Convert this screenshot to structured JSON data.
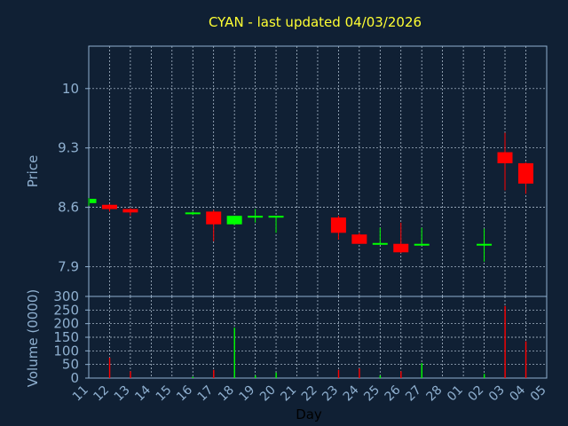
{
  "title": "CYAN - last updated 04/03/2026",
  "colors": {
    "background": "#102034",
    "plot_border": "#8fb0d0",
    "grid": "#c0d0e0",
    "up": "#00ff00",
    "down": "#ff0000",
    "title": "#ffff33",
    "tick_text": "#8fb0d0",
    "xlabel_text": "#000000"
  },
  "chart_data": [
    {
      "type": "candlestick",
      "ylabel": "Price",
      "ylim": [
        7.55,
        10.5
      ],
      "yticks": [
        7.9,
        8.6,
        9.3,
        10
      ],
      "ytick_labels": [
        "7.9",
        "8.6",
        "9.3",
        "10"
      ],
      "grid": true,
      "x": [
        "11",
        "12",
        "13",
        "14",
        "15",
        "16",
        "17",
        "18",
        "19",
        "20",
        "21",
        "22",
        "23",
        "24",
        "25",
        "26",
        "27",
        "28",
        "01",
        "02",
        "03",
        "04",
        "05"
      ],
      "candles": [
        {
          "x": "11",
          "open": 8.65,
          "high": 8.71,
          "low": 8.62,
          "close": 8.7
        },
        {
          "x": "12",
          "open": 8.63,
          "high": 8.64,
          "low": 8.55,
          "close": 8.58
        },
        {
          "x": "13",
          "open": 8.58,
          "high": 8.59,
          "low": 8.5,
          "close": 8.54
        },
        {
          "x": "16",
          "open": 8.53,
          "high": 8.55,
          "low": 8.51,
          "close": 8.54
        },
        {
          "x": "17",
          "open": 8.55,
          "high": 8.57,
          "low": 8.2,
          "close": 8.4
        },
        {
          "x": "18",
          "open": 8.4,
          "high": 8.5,
          "low": 8.39,
          "close": 8.5
        },
        {
          "x": "19",
          "open": 8.48,
          "high": 8.58,
          "low": 8.42,
          "close": 8.5
        },
        {
          "x": "20",
          "open": 8.49,
          "high": 8.5,
          "low": 8.3,
          "close": 8.5
        },
        {
          "x": "23",
          "open": 8.48,
          "high": 8.5,
          "low": 8.22,
          "close": 8.3
        },
        {
          "x": "24",
          "open": 8.28,
          "high": 8.3,
          "low": 8.17,
          "close": 8.17
        },
        {
          "x": "25",
          "open": 8.17,
          "high": 8.36,
          "low": 8.16,
          "close": 8.18
        },
        {
          "x": "26",
          "open": 8.17,
          "high": 8.42,
          "low": 8.06,
          "close": 8.07
        },
        {
          "x": "27",
          "open": 8.16,
          "high": 8.36,
          "low": 8.15,
          "close": 8.17
        },
        {
          "x": "02",
          "open": 8.16,
          "high": 8.35,
          "low": 7.96,
          "close": 8.17
        },
        {
          "x": "03",
          "open": 9.25,
          "high": 9.48,
          "low": 8.8,
          "close": 9.12
        },
        {
          "x": "04",
          "open": 9.12,
          "high": 9.13,
          "low": 8.76,
          "close": 8.88
        }
      ]
    },
    {
      "type": "bar",
      "ylabel": "Volume (0000)",
      "xlabel": "Day",
      "ylim": [
        0,
        300
      ],
      "yticks": [
        0,
        50,
        100,
        150,
        200,
        250,
        300
      ],
      "ytick_labels": [
        "0",
        "50",
        "100",
        "150",
        "200",
        "250",
        "300"
      ],
      "grid": true,
      "categories": [
        "11",
        "12",
        "13",
        "14",
        "15",
        "16",
        "17",
        "18",
        "19",
        "20",
        "21",
        "22",
        "23",
        "24",
        "25",
        "26",
        "27",
        "28",
        "01",
        "02",
        "03",
        "04",
        "05"
      ],
      "volumes": [
        {
          "x": "11",
          "value": 0,
          "dir": "up"
        },
        {
          "x": "12",
          "value": 75,
          "dir": "down"
        },
        {
          "x": "13",
          "value": 25,
          "dir": "down"
        },
        {
          "x": "16",
          "value": 5,
          "dir": "up"
        },
        {
          "x": "17",
          "value": 30,
          "dir": "down"
        },
        {
          "x": "18",
          "value": 185,
          "dir": "up"
        },
        {
          "x": "19",
          "value": 10,
          "dir": "up"
        },
        {
          "x": "20",
          "value": 20,
          "dir": "up"
        },
        {
          "x": "23",
          "value": 30,
          "dir": "down"
        },
        {
          "x": "24",
          "value": 35,
          "dir": "down"
        },
        {
          "x": "25",
          "value": 10,
          "dir": "up"
        },
        {
          "x": "26",
          "value": 25,
          "dir": "down"
        },
        {
          "x": "27",
          "value": 55,
          "dir": "up"
        },
        {
          "x": "02",
          "value": 15,
          "dir": "up"
        },
        {
          "x": "03",
          "value": 265,
          "dir": "down"
        },
        {
          "x": "04",
          "value": 135,
          "dir": "down"
        }
      ]
    }
  ]
}
